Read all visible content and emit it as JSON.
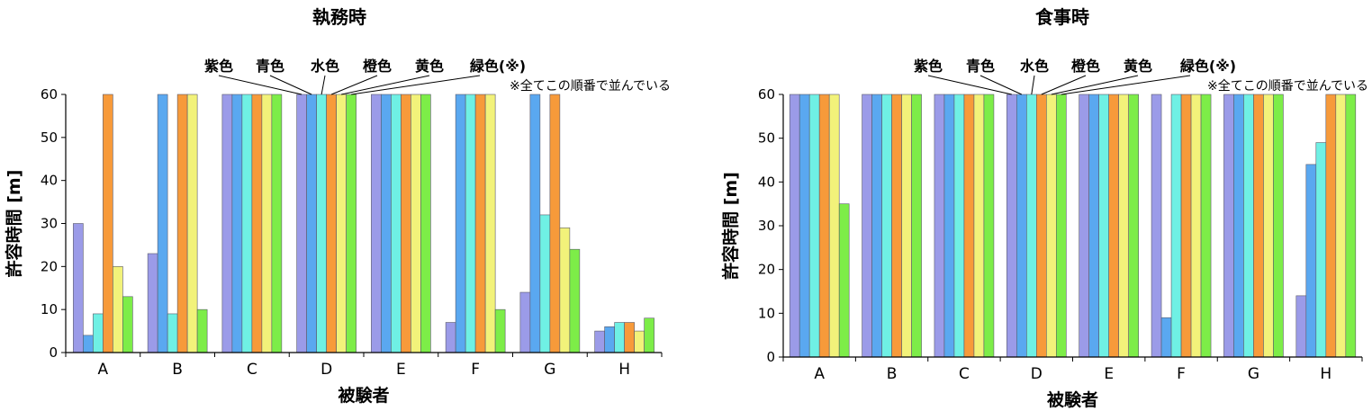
{
  "chart_data": [
    {
      "type": "bar",
      "title": "執務時",
      "xlabel": "被験者",
      "ylabel": "許容時間 [m]",
      "ylim": [
        0,
        60
      ],
      "yticks": [
        "0",
        "10",
        "20",
        "30",
        "40",
        "50",
        "60"
      ],
      "categories": [
        "A",
        "B",
        "C",
        "D",
        "E",
        "F",
        "G",
        "H"
      ],
      "series": [
        {
          "name": "紫色",
          "color": "#9b9be8",
          "values": [
            30,
            23,
            60,
            60,
            60,
            7,
            14,
            5
          ]
        },
        {
          "name": "青色",
          "color": "#5aa8f0",
          "values": [
            4,
            60,
            60,
            60,
            60,
            60,
            60,
            6
          ]
        },
        {
          "name": "水色",
          "color": "#6ff0e4",
          "values": [
            9,
            9,
            60,
            60,
            60,
            60,
            32,
            7
          ]
        },
        {
          "name": "橙色",
          "color": "#f79a3a",
          "values": [
            60,
            60,
            60,
            60,
            60,
            60,
            60,
            7
          ]
        },
        {
          "name": "黄色",
          "color": "#f2f27a",
          "values": [
            20,
            60,
            60,
            60,
            60,
            60,
            29,
            5
          ]
        },
        {
          "name": "緑色(※)",
          "color": "#7ded48",
          "values": [
            13,
            10,
            60,
            60,
            60,
            10,
            24,
            8
          ]
        }
      ],
      "legend_note": "※全てこの順番で並んでいる",
      "legend_placement": "top-right",
      "grid": false
    },
    {
      "type": "bar",
      "title": "食事時",
      "xlabel": "被験者",
      "ylabel": "許容時間 [m]",
      "ylim": [
        0,
        60
      ],
      "yticks": [
        "0",
        "10",
        "20",
        "30",
        "40",
        "50",
        "60"
      ],
      "categories": [
        "A",
        "B",
        "C",
        "D",
        "E",
        "F",
        "G",
        "H"
      ],
      "series": [
        {
          "name": "紫色",
          "color": "#9b9be8",
          "values": [
            60,
            60,
            60,
            60,
            60,
            60,
            60,
            14
          ]
        },
        {
          "name": "青色",
          "color": "#5aa8f0",
          "values": [
            60,
            60,
            60,
            60,
            60,
            9,
            60,
            44
          ]
        },
        {
          "name": "水色",
          "color": "#6ff0e4",
          "values": [
            60,
            60,
            60,
            60,
            60,
            60,
            60,
            49
          ]
        },
        {
          "name": "橙色",
          "color": "#f79a3a",
          "values": [
            60,
            60,
            60,
            60,
            60,
            60,
            60,
            60
          ]
        },
        {
          "name": "黄色",
          "color": "#f2f27a",
          "values": [
            60,
            60,
            60,
            60,
            60,
            60,
            60,
            60
          ]
        },
        {
          "name": "緑色(※)",
          "color": "#7ded48",
          "values": [
            35,
            60,
            60,
            60,
            60,
            60,
            60,
            60
          ]
        }
      ],
      "legend_note": "※全てこの順番で並んでいる",
      "legend_placement": "top-right",
      "grid": false
    }
  ]
}
